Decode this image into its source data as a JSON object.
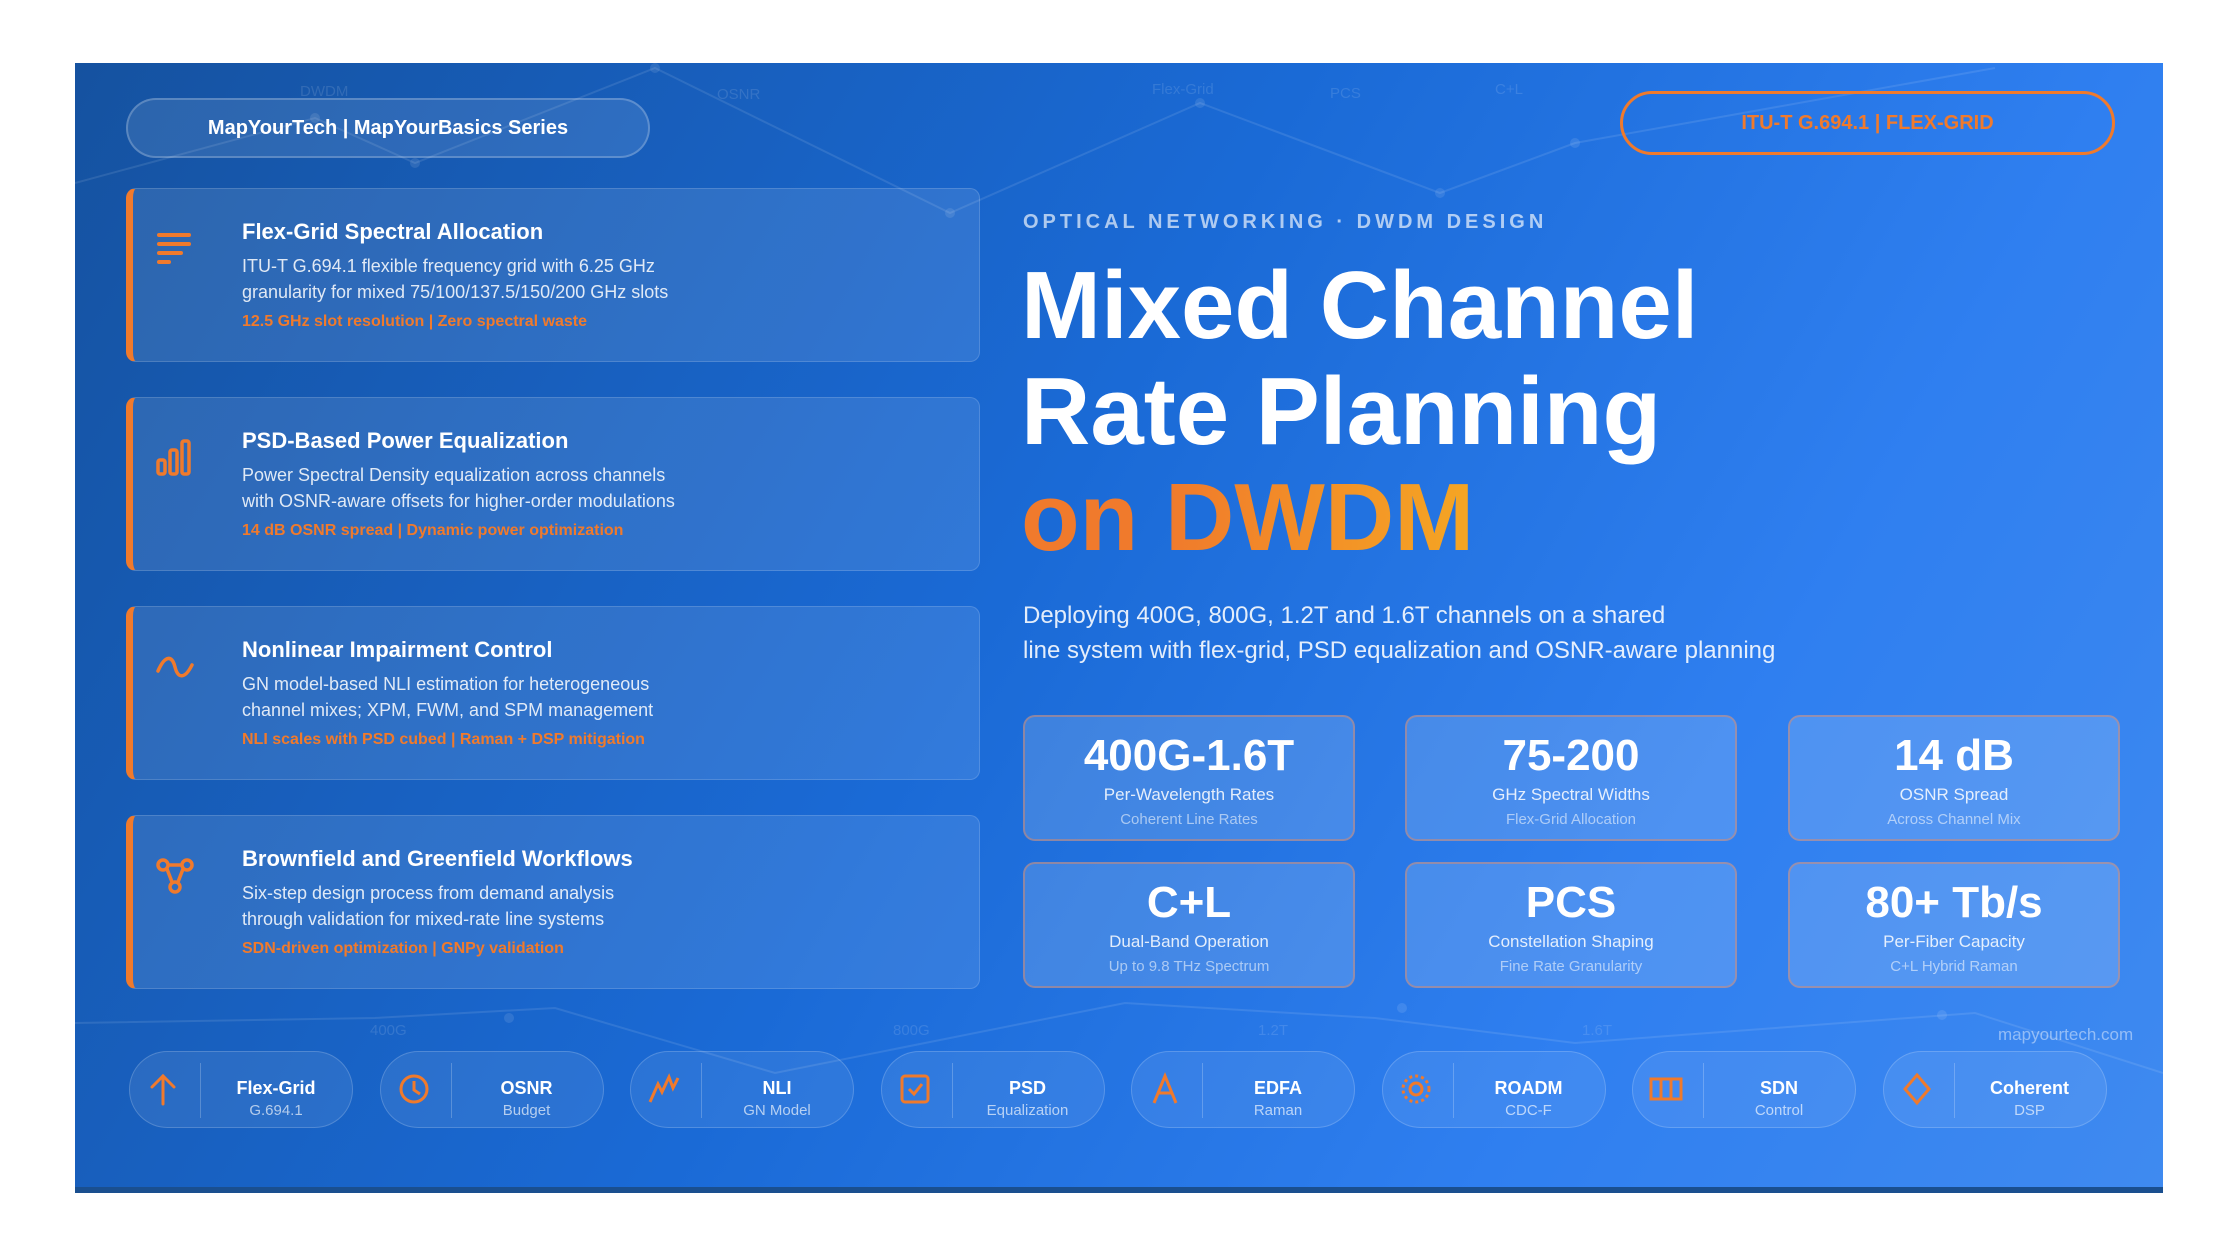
{
  "header": {
    "brand": "MapYourTech | MapYourBasics Series",
    "standard_badge": "ITU-T G.694.1 | FLEX-GRID"
  },
  "background_labels": [
    "DWDM",
    "OSNR",
    "Flex-Grid",
    "PCS",
    "C+L",
    "400G",
    "800G",
    "1.2T",
    "1.6T"
  ],
  "features": [
    {
      "icon": "list-lines-icon",
      "title": "Flex-Grid Spectral Allocation",
      "desc_1": "ITU-T G.694.1 flexible frequency grid with 6.25 GHz",
      "desc_2": "granularity for mixed 75/100/137.5/150/200 GHz slots",
      "highlight": "12.5 GHz slot resolution | Zero spectral waste"
    },
    {
      "icon": "bar-chart-icon",
      "title": "PSD-Based Power Equalization",
      "desc_1": "Power Spectral Density equalization across channels",
      "desc_2": "with OSNR-aware offsets for higher-order modulations",
      "highlight": "14 dB OSNR spread | Dynamic power optimization"
    },
    {
      "icon": "wave-icon",
      "title": "Nonlinear Impairment Control",
      "desc_1": "GN model-based NLI estimation for heterogeneous",
      "desc_2": "channel mixes; XPM, FWM, and SPM management",
      "highlight": "NLI scales with PSD cubed | Raman + DSP mitigation"
    },
    {
      "icon": "network-nodes-icon",
      "title": "Brownfield and Greenfield Workflows",
      "desc_1": "Six-step design process from demand analysis",
      "desc_2": "through validation for mixed-rate line systems",
      "highlight": "SDN-driven optimization | GNPy validation"
    }
  ],
  "hero": {
    "eyebrow": "OPTICAL NETWORKING · DWDM DESIGN",
    "title_1": "Mixed Channel",
    "title_2": "Rate Planning",
    "title_3a": "on ",
    "title_3b": "DWDM",
    "desc_1": "Deploying 400G, 800G, 1.2T and 1.6T channels on a shared",
    "desc_2": "line system with flex-grid, PSD equalization and OSNR-aware planning"
  },
  "stats": [
    {
      "value": "400G-1.6T",
      "label": "Per-Wavelength Rates",
      "sub": "Coherent Line Rates"
    },
    {
      "value": "75-200",
      "label": "GHz Spectral Widths",
      "sub": "Flex-Grid Allocation"
    },
    {
      "value": "14 dB",
      "label": "OSNR Spread",
      "sub": "Across Channel Mix"
    },
    {
      "value": "C+L",
      "label": "Dual-Band Operation",
      "sub": "Up to 9.8 THz Spectrum"
    },
    {
      "value": "PCS",
      "label": "Constellation Shaping",
      "sub": "Fine Rate Granularity"
    },
    {
      "value": "80+ Tb/s",
      "label": "Per-Fiber Capacity",
      "sub": "C+L Hybrid Raman"
    }
  ],
  "chips": [
    {
      "icon": "arrow-up-icon",
      "name": "Flex-Grid",
      "sub": "G.694.1"
    },
    {
      "icon": "clock-icon",
      "name": "OSNR",
      "sub": "Budget"
    },
    {
      "icon": "zigzag-icon",
      "name": "NLI",
      "sub": "GN Model"
    },
    {
      "icon": "checkbox-icon",
      "name": "PSD",
      "sub": "Equalization"
    },
    {
      "icon": "amplifier-icon",
      "name": "EDFA",
      "sub": "Raman"
    },
    {
      "icon": "sun-icon",
      "name": "ROADM",
      "sub": "CDC-F"
    },
    {
      "icon": "columns-icon",
      "name": "SDN",
      "sub": "Control"
    },
    {
      "icon": "diamond-icon",
      "name": "Coherent",
      "sub": "DSP"
    }
  ],
  "footer": {
    "site": "mapyourtech.com"
  },
  "colors": {
    "accent": "#f07a2c",
    "bg_start": "#1552a0",
    "bg_end": "#3f8af0"
  }
}
